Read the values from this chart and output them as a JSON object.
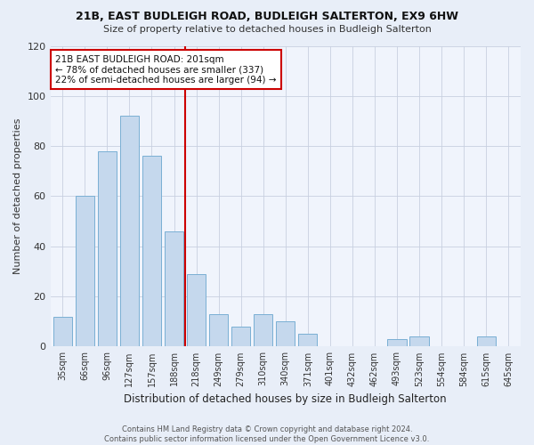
{
  "title1": "21B, EAST BUDLEIGH ROAD, BUDLEIGH SALTERTON, EX9 6HW",
  "title2": "Size of property relative to detached houses in Budleigh Salterton",
  "xlabel": "Distribution of detached houses by size in Budleigh Salterton",
  "ylabel": "Number of detached properties",
  "categories": [
    "35sqm",
    "66sqm",
    "96sqm",
    "127sqm",
    "157sqm",
    "188sqm",
    "218sqm",
    "249sqm",
    "279sqm",
    "310sqm",
    "340sqm",
    "371sqm",
    "401sqm",
    "432sqm",
    "462sqm",
    "493sqm",
    "523sqm",
    "554sqm",
    "584sqm",
    "615sqm",
    "645sqm"
  ],
  "bar_values": [
    12,
    60,
    78,
    92,
    76,
    46,
    29,
    13,
    8,
    13,
    10,
    5,
    0,
    0,
    0,
    3,
    4,
    0,
    0,
    4,
    0
  ],
  "bar_color": "#c5d8ed",
  "bar_edge_color": "#7aafd4",
  "vline_x": 5.5,
  "vline_color": "#cc0000",
  "annotation_line1": "21B EAST BUDLEIGH ROAD: 201sqm",
  "annotation_line2": "← 78% of detached houses are smaller (337)",
  "annotation_line3": "22% of semi-detached houses are larger (94) →",
  "annotation_box_color": "#ffffff",
  "annotation_box_edge": "#cc0000",
  "ylim": [
    0,
    120
  ],
  "yticks": [
    0,
    20,
    40,
    60,
    80,
    100,
    120
  ],
  "footer": "Contains HM Land Registry data © Crown copyright and database right 2024.\nContains public sector information licensed under the Open Government Licence v3.0.",
  "bg_color": "#e8eef8",
  "plot_bg_color": "#f0f4fc"
}
